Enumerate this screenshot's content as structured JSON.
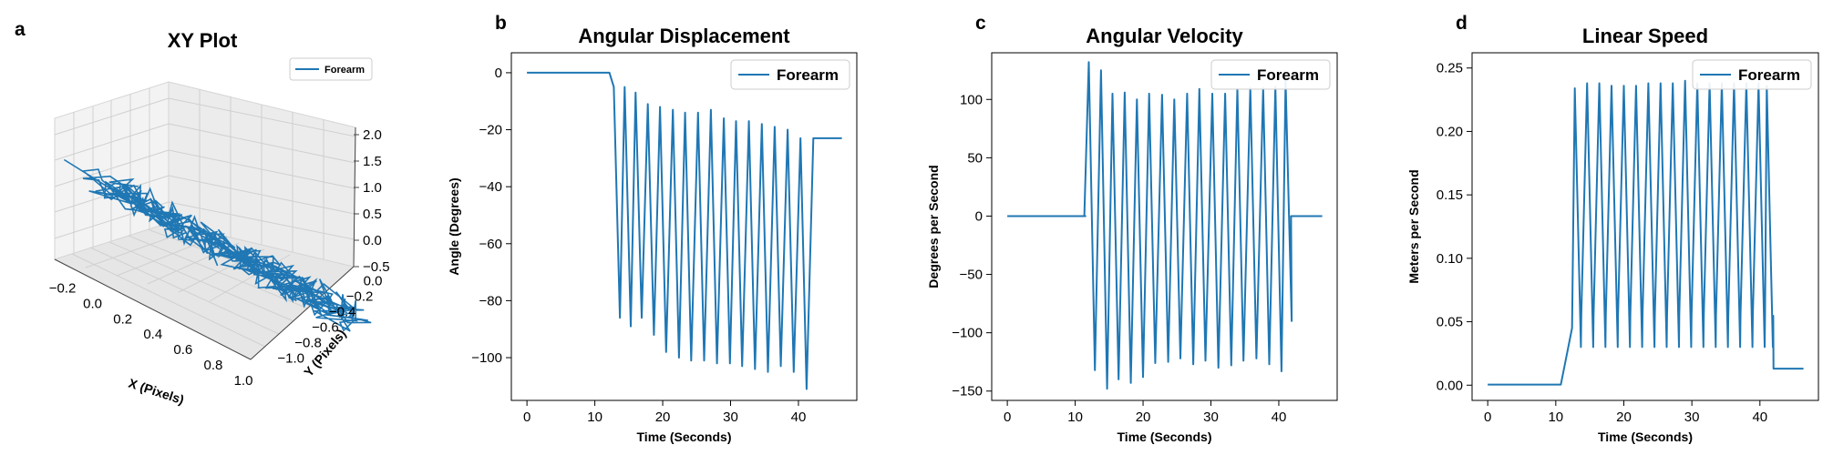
{
  "colors": {
    "series": "#1f77b4",
    "axis": "#000000",
    "pane": "#f2f2f2",
    "grid": "#d0d0d0"
  },
  "chart_data": [
    {
      "id": "a",
      "panel_label": "a",
      "type": "line-3d",
      "title": "XY Plot",
      "xlabel": "X (Pixels)",
      "ylabel": "Y (Pixels)",
      "zlabel": "",
      "xticks": [
        "−0.2",
        "0.0",
        "0.2",
        "0.4",
        "0.6",
        "0.8",
        "1.0"
      ],
      "yticks": [
        "0.0",
        "−0.2",
        "−0.4",
        "−0.6",
        "−0.8",
        "−1.0"
      ],
      "zticks": [
        "2.0",
        "1.5",
        "1.0",
        "0.5",
        "0.0",
        "−0.5"
      ],
      "xlim": [
        -0.3,
        1.0
      ],
      "ylim": [
        -1.1,
        0.1
      ],
      "zlim": [
        -0.7,
        2.0
      ],
      "legend": [
        "Forearm"
      ],
      "legend_position": "top-right",
      "series": [
        {
          "name": "Forearm",
          "description": "dense oscillating trace running diagonally from x≈-0.3, y≈0 down toward x≈1.0, y≈-0.9"
        }
      ]
    },
    {
      "id": "b",
      "panel_label": "b",
      "type": "line",
      "title": "Angular Displacement",
      "xlabel": "Time (Seconds)",
      "ylabel": "Angle (Degrees)",
      "xlim": [
        -2.3,
        48.6
      ],
      "ylim": [
        -115,
        7
      ],
      "xticks": [
        0,
        10,
        20,
        30,
        40
      ],
      "yticks": [
        0,
        -20,
        -40,
        -60,
        -80,
        -100
      ],
      "legend": [
        "Forearm"
      ],
      "legend_position": "top-right",
      "series": [
        {
          "name": "Forearm",
          "baseline_before": {
            "t_start": 0,
            "t_end": 11.7,
            "value": 0
          },
          "cycles": [
            {
              "t": 12.8,
              "peak": -5,
              "trough": -86
            },
            {
              "t": 14.4,
              "peak": -5,
              "trough": -89
            },
            {
              "t": 16.0,
              "peak": -7,
              "trough": -86
            },
            {
              "t": 17.8,
              "peak": -11,
              "trough": -92
            },
            {
              "t": 19.6,
              "peak": -12,
              "trough": -98
            },
            {
              "t": 21.5,
              "peak": -13,
              "trough": -100
            },
            {
              "t": 23.3,
              "peak": -14,
              "trough": -101
            },
            {
              "t": 25.2,
              "peak": -14,
              "trough": -101
            },
            {
              "t": 27.1,
              "peak": -13,
              "trough": -102
            },
            {
              "t": 29.0,
              "peak": -16,
              "trough": -102
            },
            {
              "t": 30.8,
              "peak": -17,
              "trough": -103
            },
            {
              "t": 32.7,
              "peak": -17,
              "trough": -104
            },
            {
              "t": 34.6,
              "peak": -18,
              "trough": -105
            },
            {
              "t": 36.5,
              "peak": -19,
              "trough": -103
            },
            {
              "t": 38.4,
              "peak": -20,
              "trough": -105
            },
            {
              "t": 40.3,
              "peak": -23,
              "trough": -111
            }
          ],
          "baseline_after": {
            "t_start": 42.2,
            "t_end": 46.4,
            "value": -23
          }
        }
      ]
    },
    {
      "id": "c",
      "panel_label": "c",
      "type": "line",
      "title": "Angular Velocity",
      "xlabel": "Time (Seconds)",
      "ylabel": "Degrees per Second",
      "xlim": [
        -2.3,
        48.6
      ],
      "ylim": [
        -158,
        140
      ],
      "xticks": [
        0,
        10,
        20,
        30,
        40
      ],
      "yticks": [
        100,
        50,
        0,
        -50,
        -100,
        -150
      ],
      "legend": [
        "Forearm"
      ],
      "legend_position": "top-right",
      "series": [
        {
          "name": "Forearm",
          "baseline_before": {
            "t_start": 0,
            "t_end": 11.5,
            "value": 0
          },
          "cycles": [
            {
              "t": 12.0,
              "peak": 132,
              "trough": -132
            },
            {
              "t": 13.8,
              "peak": 125,
              "trough": -148
            },
            {
              "t": 15.5,
              "peak": 105,
              "trough": -140
            },
            {
              "t": 17.3,
              "peak": 106,
              "trough": -143
            },
            {
              "t": 19.1,
              "peak": 100,
              "trough": -138
            },
            {
              "t": 20.9,
              "peak": 105,
              "trough": -126
            },
            {
              "t": 22.8,
              "peak": 104,
              "trough": -125
            },
            {
              "t": 24.6,
              "peak": 100,
              "trough": -122
            },
            {
              "t": 26.5,
              "peak": 105,
              "trough": -127
            },
            {
              "t": 28.3,
              "peak": 109,
              "trough": -124
            },
            {
              "t": 30.2,
              "peak": 105,
              "trough": -130
            },
            {
              "t": 32.1,
              "peak": 105,
              "trough": -128
            },
            {
              "t": 33.9,
              "peak": 109,
              "trough": -124
            },
            {
              "t": 35.8,
              "peak": 110,
              "trough": -122
            },
            {
              "t": 37.7,
              "peak": 110,
              "trough": -127
            },
            {
              "t": 39.5,
              "peak": 111,
              "trough": -133
            },
            {
              "t": 41.0,
              "peak": 116,
              "trough": -90
            }
          ],
          "baseline_after": {
            "t_start": 41.8,
            "t_end": 46.4,
            "value": 0
          }
        }
      ]
    },
    {
      "id": "d",
      "panel_label": "d",
      "type": "line",
      "title": "Linear Speed",
      "xlabel": "Time (Seconds)",
      "ylabel": "Meters per Second",
      "xlim": [
        -2.3,
        48.6
      ],
      "ylim": [
        -0.012,
        0.262
      ],
      "xticks": [
        0,
        10,
        20,
        30,
        40
      ],
      "yticks": [
        "0.25",
        "0.20",
        "0.15",
        "0.10",
        "0.05",
        "0.00"
      ],
      "legend": [
        "Forearm"
      ],
      "legend_position": "top-right",
      "series": [
        {
          "name": "Forearm",
          "baseline_before": {
            "t_start": 0,
            "t_end": 10.8,
            "value": 0.0005
          },
          "ramp": {
            "t_end": 12.4,
            "value": 0.045
          },
          "cycles": [
            {
              "t": 12.8,
              "peak": 0.234,
              "trough": 0.03
            },
            {
              "t": 14.6,
              "peak": 0.238,
              "trough": 0.03
            },
            {
              "t": 16.4,
              "peak": 0.238,
              "trough": 0.03
            },
            {
              "t": 18.2,
              "peak": 0.236,
              "trough": 0.03
            },
            {
              "t": 20.0,
              "peak": 0.236,
              "trough": 0.03
            },
            {
              "t": 21.8,
              "peak": 0.236,
              "trough": 0.03
            },
            {
              "t": 23.6,
              "peak": 0.238,
              "trough": 0.03
            },
            {
              "t": 25.4,
              "peak": 0.238,
              "trough": 0.03
            },
            {
              "t": 27.2,
              "peak": 0.238,
              "trough": 0.03
            },
            {
              "t": 29.0,
              "peak": 0.24,
              "trough": 0.03
            },
            {
              "t": 30.8,
              "peak": 0.238,
              "trough": 0.03
            },
            {
              "t": 32.6,
              "peak": 0.238,
              "trough": 0.03
            },
            {
              "t": 34.4,
              "peak": 0.238,
              "trough": 0.03
            },
            {
              "t": 36.2,
              "peak": 0.238,
              "trough": 0.03
            },
            {
              "t": 38.0,
              "peak": 0.238,
              "trough": 0.03
            },
            {
              "t": 39.8,
              "peak": 0.238,
              "trough": 0.03
            },
            {
              "t": 41.0,
              "peak": 0.236,
              "trough": 0.03
            }
          ],
          "baseline_after": {
            "t_start": 42.0,
            "t_end": 46.4,
            "value": 0.013
          }
        }
      ]
    }
  ]
}
